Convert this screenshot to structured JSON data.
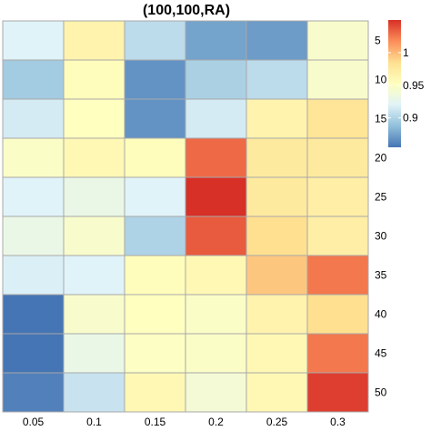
{
  "chart_data": {
    "type": "heatmap",
    "title": "(100,100,RA)",
    "x_labels": [
      "0.05",
      "0.1",
      "0.15",
      "0.2",
      "0.25",
      "0.3"
    ],
    "y_labels": [
      "5",
      "10",
      "15",
      "20",
      "25",
      "30",
      "35",
      "40",
      "45",
      "50"
    ],
    "values": [
      [
        0.92,
        0.965,
        0.905,
        0.875,
        0.872,
        0.945
      ],
      [
        0.895,
        0.955,
        0.868,
        0.898,
        0.905,
        0.945
      ],
      [
        0.915,
        0.952,
        0.868,
        0.915,
        0.965,
        0.98
      ],
      [
        0.948,
        0.96,
        0.955,
        1.03,
        0.975,
        0.975
      ],
      [
        0.92,
        0.93,
        0.92,
        1.05,
        0.975,
        0.97
      ],
      [
        0.93,
        0.945,
        0.9,
        1.035,
        0.985,
        0.97
      ],
      [
        0.918,
        0.92,
        0.955,
        0.96,
        0.995,
        1.025
      ],
      [
        0.855,
        0.945,
        0.952,
        0.948,
        0.965,
        0.985
      ],
      [
        0.855,
        0.93,
        0.95,
        0.948,
        0.96,
        1.025
      ],
      [
        0.86,
        0.91,
        0.96,
        0.94,
        0.96,
        1.045
      ]
    ],
    "colorbar": {
      "ticks": [
        {
          "value": 0.9,
          "label": "0.9"
        },
        {
          "value": 0.95,
          "label": "0.95"
        },
        {
          "value": 1.0,
          "label": "1"
        }
      ],
      "range": [
        0.855,
        1.05
      ],
      "colors": [
        "#4575b4",
        "#91bfdb",
        "#e0f3f8",
        "#ffffbf",
        "#fee090",
        "#fc8d59",
        "#d73027"
      ]
    },
    "grid": true,
    "legend_position": "right"
  }
}
